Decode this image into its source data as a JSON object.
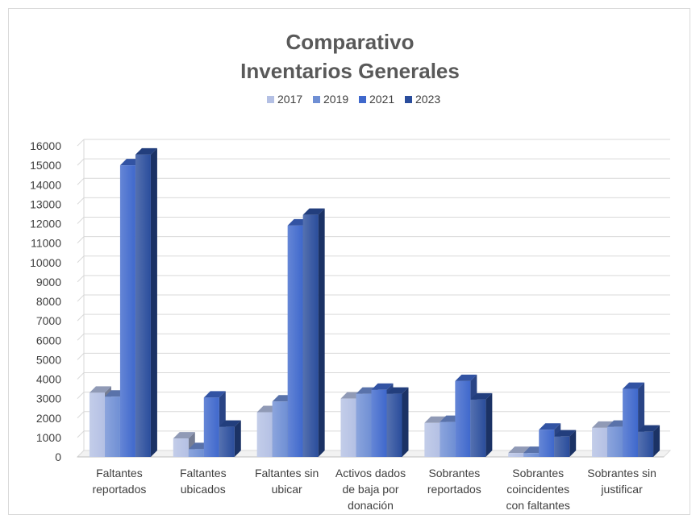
{
  "chart_data": {
    "type": "bar",
    "title_lines": [
      "Comparativo",
      "Inventarios Generales"
    ],
    "legend_position": "top",
    "grid": true,
    "ylim": [
      0,
      16000
    ],
    "ytick_step": 1000,
    "categories": [
      [
        "Faltantes",
        "reportados"
      ],
      [
        "Faltantes",
        "ubicados"
      ],
      [
        "Faltantes sin",
        "ubicar"
      ],
      [
        "Activos dados",
        "de baja por",
        "donación"
      ],
      [
        "Sobrantes",
        "reportados"
      ],
      [
        "Sobrantes",
        "coincidentes",
        "con faltantes"
      ],
      [
        "Sobrantes sin",
        "justificar"
      ]
    ],
    "series": [
      {
        "name": "2017",
        "color": "#b4c0e4",
        "values": [
          3300,
          950,
          2300,
          3000,
          1750,
          200,
          1500
        ]
      },
      {
        "name": "2019",
        "color": "#6f8fd4",
        "values": [
          3100,
          400,
          2850,
          3250,
          1800,
          200,
          1550
        ]
      },
      {
        "name": "2021",
        "color": "#3f68cc",
        "values": [
          15000,
          3050,
          11900,
          3450,
          3900,
          1400,
          3500
        ]
      },
      {
        "name": "2023",
        "color": "#2a4d9c",
        "values": [
          15550,
          1550,
          12450,
          3250,
          2950,
          1050,
          1300
        ]
      }
    ]
  }
}
